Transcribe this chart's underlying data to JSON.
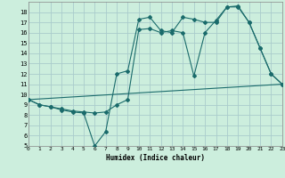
{
  "background_color": "#cceedd",
  "grid_color": "#aacccc",
  "line_color": "#1a6b6b",
  "xlabel": "Humidex (Indice chaleur)",
  "ylim": [
    5,
    19
  ],
  "xlim": [
    0,
    23
  ],
  "yticks": [
    5,
    6,
    7,
    8,
    9,
    10,
    11,
    12,
    13,
    14,
    15,
    16,
    17,
    18
  ],
  "xticks": [
    0,
    1,
    2,
    3,
    4,
    5,
    6,
    7,
    8,
    9,
    10,
    11,
    12,
    13,
    14,
    15,
    16,
    17,
    18,
    19,
    20,
    21,
    22,
    23
  ],
  "line1_x": [
    0,
    1,
    2,
    3,
    4,
    5,
    6,
    7,
    8,
    9,
    10,
    11,
    12,
    13,
    14,
    15,
    16,
    17,
    18,
    19,
    20,
    21,
    22,
    23
  ],
  "line1_y": [
    9.5,
    9.0,
    8.8,
    8.5,
    8.3,
    8.2,
    5.0,
    6.4,
    12.0,
    12.3,
    17.3,
    17.5,
    16.2,
    16.0,
    17.5,
    17.3,
    17.0,
    17.0,
    18.5,
    18.5,
    17.0,
    14.5,
    12.0,
    11.0
  ],
  "line2_x": [
    0,
    1,
    2,
    3,
    4,
    5,
    6,
    7,
    8,
    9,
    10,
    11,
    12,
    13,
    14,
    15,
    16,
    17,
    18,
    19,
    20,
    21,
    22,
    23
  ],
  "line2_y": [
    9.5,
    9.0,
    8.8,
    8.6,
    8.4,
    8.3,
    8.2,
    8.3,
    9.0,
    9.5,
    16.3,
    16.4,
    16.0,
    16.2,
    16.0,
    11.8,
    16.0,
    17.2,
    18.5,
    18.6,
    17.0,
    14.5,
    12.0,
    11.0
  ],
  "line3_x": [
    0,
    23
  ],
  "line3_y": [
    9.5,
    11.0
  ]
}
